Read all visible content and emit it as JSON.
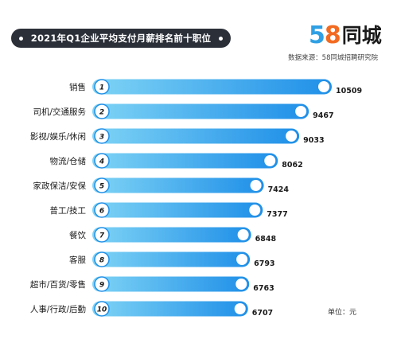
{
  "header": {
    "title": "2021年Q1企业平均支付月薪排名前十职位",
    "logo_number_5": "5",
    "logo_number_8": "8",
    "logo_name": "同城",
    "source": "数据来源：58同城招聘研究院"
  },
  "unit_label": "单位：元",
  "colors": {
    "bar_start": "#7fd4f5",
    "bar_end": "#1f8fe8",
    "title_bg": "#2b2f38",
    "logo_blue": "#2fa0e4",
    "logo_orange": "#f26b21"
  },
  "chart_data": {
    "type": "bar",
    "orientation": "horizontal",
    "title": "2021年Q1企业平均支付月薪排名前十职位",
    "categories": [
      "销售",
      "司机/交通服务",
      "影视/娱乐/休闲",
      "物流/仓储",
      "家政保洁/安保",
      "普工/技工",
      "餐饮",
      "客服",
      "超市/百货/零售",
      "人事/行政/后勤"
    ],
    "ranks": [
      "1",
      "2",
      "3",
      "4",
      "5",
      "6",
      "7",
      "8",
      "9",
      "10"
    ],
    "values": [
      10509,
      9467,
      9033,
      8062,
      7424,
      7377,
      6848,
      6793,
      6763,
      6707
    ],
    "unit": "元",
    "grid": false,
    "legend": "none"
  }
}
